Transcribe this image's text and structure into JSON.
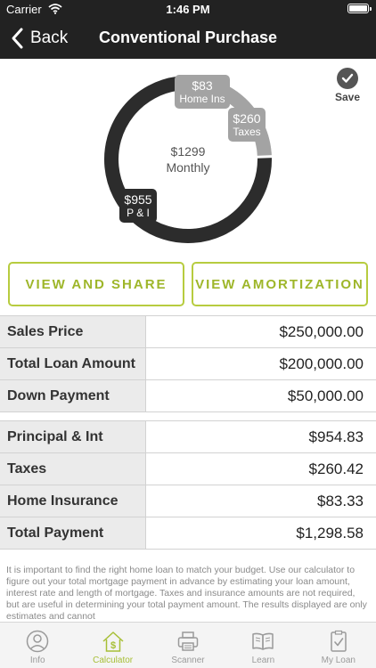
{
  "status_bar": {
    "carrier": "Carrier",
    "time": "1:46 PM"
  },
  "nav": {
    "back_label": "Back",
    "title": "Conventional Purchase"
  },
  "chart_data": {
    "type": "pie",
    "center_amount": "$1299",
    "center_label": "Monthly",
    "total": 1298.58,
    "slices": [
      {
        "label": "P & I",
        "display_value": "$955",
        "value": 954.83,
        "color": "#2c2c2c"
      },
      {
        "label": "Taxes",
        "display_value": "$260",
        "value": 260.42,
        "color": "#a3a3a3"
      },
      {
        "label": "Home Ins",
        "display_value": "$83",
        "value": 83.33,
        "color": "#a3a3a3"
      }
    ]
  },
  "save": {
    "label": "Save"
  },
  "actions": {
    "view_share": "VIEW AND SHARE",
    "view_amortization": "VIEW AMORTIZATION"
  },
  "loan_table": [
    {
      "label": "Sales Price",
      "value": "$250,000.00"
    },
    {
      "label": "Total Loan Amount",
      "value": "$200,000.00"
    },
    {
      "label": "Down Payment",
      "value": "$50,000.00"
    }
  ],
  "payment_table": [
    {
      "label": "Principal & Int",
      "value": "$954.83"
    },
    {
      "label": "Taxes",
      "value": "$260.42"
    },
    {
      "label": "Home Insurance",
      "value": "$83.33"
    },
    {
      "label": "Total Payment",
      "value": "$1,298.58"
    }
  ],
  "disclaimer": "It is important to find the right home loan to match your budget. Use our calculator to figure out your total mortgage payment in advance by estimating your loan amount, interest rate and length of mortgage. Taxes and insurance amounts are not required, but are useful in determining your total payment amount.  The results displayed are only estimates and cannot",
  "tabs": [
    {
      "label": "Info",
      "icon": "person-icon"
    },
    {
      "label": "Calculator",
      "icon": "house-dollar-icon",
      "active": true
    },
    {
      "label": "Scanner",
      "icon": "printer-icon"
    },
    {
      "label": "Learn",
      "icon": "book-icon"
    },
    {
      "label": "My Loan",
      "icon": "clipboard-check-icon"
    }
  ],
  "colors": {
    "accent": "#b7cc3f",
    "accent_text": "#9eb62a",
    "dark": "#222222",
    "table_label_bg": "#ebebeb"
  }
}
